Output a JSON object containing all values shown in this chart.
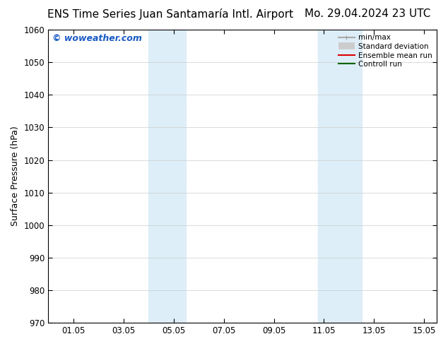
{
  "title_left": "ENS Time Series Juan Santamaría Intl. Airport",
  "title_right": "Mo. 29.04.2024 23 UTC",
  "ylabel": "Surface Pressure (hPa)",
  "ylim": [
    970,
    1060
  ],
  "yticks": [
    970,
    980,
    990,
    1000,
    1010,
    1020,
    1030,
    1040,
    1050,
    1060
  ],
  "xlim_start": 0.0,
  "xlim_end": 15.5,
  "xticks": [
    1.0,
    3.0,
    5.0,
    7.0,
    9.0,
    11.0,
    13.0,
    15.0
  ],
  "xticklabels": [
    "01.05",
    "03.05",
    "05.05",
    "07.05",
    "09.05",
    "11.05",
    "13.05",
    "15.05"
  ],
  "shaded_bands": [
    {
      "x_start": 4.0,
      "x_end": 5.5
    },
    {
      "x_start": 10.75,
      "x_end": 12.5
    }
  ],
  "shade_color": "#ddeef8",
  "watermark": "© woweather.com",
  "watermark_color": "#1a5bc4",
  "bg_color": "#ffffff",
  "grid_color": "#cccccc",
  "legend_items": [
    {
      "label": "min/max",
      "color": "#aaaaaa",
      "lw": 1.5
    },
    {
      "label": "Standard deviation",
      "color": "#cccccc",
      "lw": 6
    },
    {
      "label": "Ensemble mean run",
      "color": "#dd0000",
      "lw": 1.5
    },
    {
      "label": "Controll run",
      "color": "#006600",
      "lw": 1.5
    }
  ],
  "title_fontsize": 11,
  "tick_fontsize": 8.5,
  "ylabel_fontsize": 9,
  "watermark_fontsize": 9
}
